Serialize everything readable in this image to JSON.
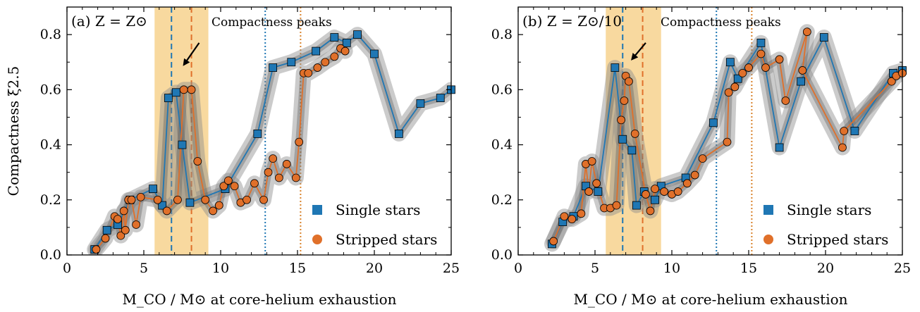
{
  "chart_data": [
    {
      "type": "line",
      "panel_label": "(a) Z = Z⊙",
      "annotation": "Compactness peaks",
      "xlabel": "M_CO / M⊙ at core-helium exhaustion",
      "ylabel": "Compactness ξ2.5",
      "xlim": [
        0,
        25
      ],
      "ylim": [
        0,
        0.9
      ],
      "xticks": [
        0,
        5,
        10,
        15,
        20,
        25
      ],
      "yticks": [
        0.0,
        0.2,
        0.4,
        0.6,
        0.8
      ],
      "ytick_labels": [
        "0.0",
        "0.2",
        "0.4",
        "0.6",
        "0.8"
      ],
      "legend_position": "lower-right",
      "shaded_band": {
        "x": [
          5.7,
          9.2
        ],
        "color": "#f5c46b"
      },
      "vlines": [
        {
          "x": 6.8,
          "style": "dashed",
          "color": "#1f77b4"
        },
        {
          "x": 8.1,
          "style": "dashed",
          "color": "#e0702a"
        },
        {
          "x": 12.9,
          "style": "dotted",
          "color": "#1f77b4"
        },
        {
          "x": 15.2,
          "style": "dotted",
          "color": "#d9822b"
        }
      ],
      "arrow": {
        "from": [
          8.6,
          0.77
        ],
        "to": [
          7.6,
          0.69
        ]
      },
      "series": [
        {
          "name": "Single stars",
          "marker": "square",
          "color": "#1f77b4",
          "x": [
            1.8,
            2.6,
            3.3,
            4.1,
            5.6,
            6.2,
            6.6,
            7.1,
            7.5,
            8.0,
            10.3,
            12.4,
            13.4,
            14.6,
            16.2,
            17.4,
            18.2,
            18.9,
            20.0,
            21.6,
            23.0,
            24.3,
            25.0
          ],
          "y": [
            0.02,
            0.09,
            0.11,
            0.2,
            0.24,
            0.18,
            0.57,
            0.59,
            0.4,
            0.19,
            0.24,
            0.44,
            0.68,
            0.7,
            0.74,
            0.79,
            0.77,
            0.8,
            0.73,
            0.44,
            0.55,
            0.57,
            0.6
          ]
        },
        {
          "name": "Stripped stars",
          "marker": "circle",
          "color": "#e0702a",
          "x": [
            1.9,
            2.5,
            3.1,
            3.3,
            3.5,
            3.7,
            3.8,
            4.0,
            4.2,
            4.5,
            4.8,
            5.9,
            6.5,
            7.2,
            7.6,
            8.1,
            8.5,
            9.0,
            9.5,
            9.9,
            10.2,
            10.5,
            10.9,
            11.3,
            11.7,
            12.2,
            12.8,
            13.1,
            13.4,
            13.8,
            14.3,
            14.9,
            15.1,
            15.4,
            15.7,
            16.3,
            16.8,
            17.4,
            17.8,
            18.1
          ],
          "y": [
            0.02,
            0.06,
            0.14,
            0.13,
            0.07,
            0.16,
            0.09,
            0.2,
            0.2,
            0.11,
            0.21,
            0.2,
            0.16,
            0.2,
            0.6,
            0.6,
            0.34,
            0.2,
            0.16,
            0.18,
            0.25,
            0.27,
            0.25,
            0.19,
            0.2,
            0.26,
            0.2,
            0.3,
            0.35,
            0.28,
            0.33,
            0.28,
            0.41,
            0.66,
            0.66,
            0.68,
            0.7,
            0.72,
            0.75,
            0.74
          ]
        }
      ]
    },
    {
      "type": "line",
      "panel_label": "(b) Z = Z⊙/10",
      "annotation": "Compactness peaks",
      "xlabel": "M_CO / M⊙ at core-helium exhaustion",
      "ylabel": "",
      "xlim": [
        0,
        25
      ],
      "ylim": [
        0,
        0.9
      ],
      "xticks": [
        0,
        5,
        10,
        15,
        20,
        25
      ],
      "yticks": [
        0.0,
        0.2,
        0.4,
        0.6,
        0.8
      ],
      "ytick_labels": [
        "0.0",
        "0.2",
        "0.4",
        "0.6",
        "0.8"
      ],
      "legend_position": "lower-right",
      "shaded_band": {
        "x": [
          5.7,
          9.3
        ],
        "color": "#f5c46b"
      },
      "vlines": [
        {
          "x": 6.8,
          "style": "dashed",
          "color": "#1f77b4"
        },
        {
          "x": 8.1,
          "style": "dashed",
          "color": "#e0702a"
        },
        {
          "x": 12.9,
          "style": "dotted",
          "color": "#1f77b4"
        },
        {
          "x": 15.2,
          "style": "dotted",
          "color": "#d9822b"
        }
      ],
      "arrow": {
        "from": [
          8.3,
          0.77
        ],
        "to": [
          7.4,
          0.71
        ]
      },
      "series": [
        {
          "name": "Single stars",
          "marker": "square",
          "color": "#1f77b4",
          "x": [
            2.2,
            2.9,
            3.6,
            4.4,
            5.2,
            6.3,
            6.8,
            7.4,
            7.7,
            8.2,
            8.9,
            9.3,
            10.9,
            12.7,
            13.8,
            14.3,
            15.8,
            17.0,
            18.4,
            19.9,
            21.9,
            24.4,
            25.0
          ],
          "y": [
            0.04,
            0.12,
            0.14,
            0.25,
            0.23,
            0.68,
            0.42,
            0.38,
            0.18,
            0.23,
            0.2,
            0.25,
            0.28,
            0.48,
            0.7,
            0.64,
            0.77,
            0.39,
            0.63,
            0.79,
            0.45,
            0.66,
            0.67
          ]
        },
        {
          "name": "Stripped stars",
          "marker": "circle",
          "color": "#e0702a",
          "x": [
            2.3,
            3.0,
            3.5,
            4.1,
            4.4,
            4.6,
            4.8,
            5.1,
            5.6,
            6.0,
            6.4,
            6.7,
            6.9,
            7.0,
            7.2,
            7.6,
            8.3,
            8.6,
            8.9,
            9.5,
            10.0,
            10.4,
            11.0,
            11.5,
            12.0,
            13.6,
            13.7,
            14.1,
            14.6,
            15.0,
            15.8,
            16.1,
            17.0,
            17.4,
            18.8,
            18.5,
            21.1,
            21.2,
            24.3,
            24.6,
            25.0
          ],
          "y": [
            0.05,
            0.14,
            0.13,
            0.15,
            0.33,
            0.23,
            0.34,
            0.26,
            0.17,
            0.17,
            0.18,
            0.49,
            0.56,
            0.65,
            0.63,
            0.44,
            0.22,
            0.16,
            0.24,
            0.23,
            0.22,
            0.23,
            0.26,
            0.29,
            0.35,
            0.41,
            0.59,
            0.61,
            0.66,
            0.68,
            0.73,
            0.68,
            0.71,
            0.56,
            0.81,
            0.67,
            0.39,
            0.45,
            0.63,
            0.65,
            0.66
          ]
        }
      ]
    }
  ]
}
